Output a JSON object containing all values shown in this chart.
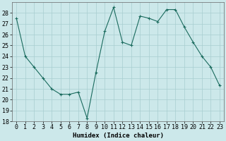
{
  "x": [
    0,
    1,
    2,
    3,
    4,
    5,
    6,
    7,
    8,
    9,
    10,
    11,
    12,
    13,
    14,
    15,
    16,
    17,
    18,
    19,
    20,
    21,
    22,
    23
  ],
  "y": [
    27.5,
    24.0,
    23.0,
    22.0,
    21.0,
    20.5,
    20.5,
    20.7,
    18.3,
    22.5,
    26.3,
    28.5,
    25.3,
    25.0,
    27.7,
    27.5,
    27.2,
    28.3,
    28.3,
    26.7,
    25.3,
    24.0,
    23.0,
    21.3
  ],
  "line_color": "#1a6b5e",
  "marker": "+",
  "marker_size": 3,
  "marker_lw": 0.8,
  "line_width": 0.8,
  "bg_color": "#cce8ea",
  "grid_color": "#a8cdd0",
  "xlabel": "Humidex (Indice chaleur)",
  "ylim": [
    18,
    29
  ],
  "xlim_min": -0.5,
  "xlim_max": 23.5,
  "yticks": [
    18,
    19,
    20,
    21,
    22,
    23,
    24,
    25,
    26,
    27,
    28
  ],
  "xticks": [
    0,
    1,
    2,
    3,
    4,
    5,
    6,
    7,
    8,
    9,
    10,
    11,
    12,
    13,
    14,
    15,
    16,
    17,
    18,
    19,
    20,
    21,
    22,
    23
  ],
  "xlabel_fontsize": 6.5,
  "tick_fontsize": 6.0
}
